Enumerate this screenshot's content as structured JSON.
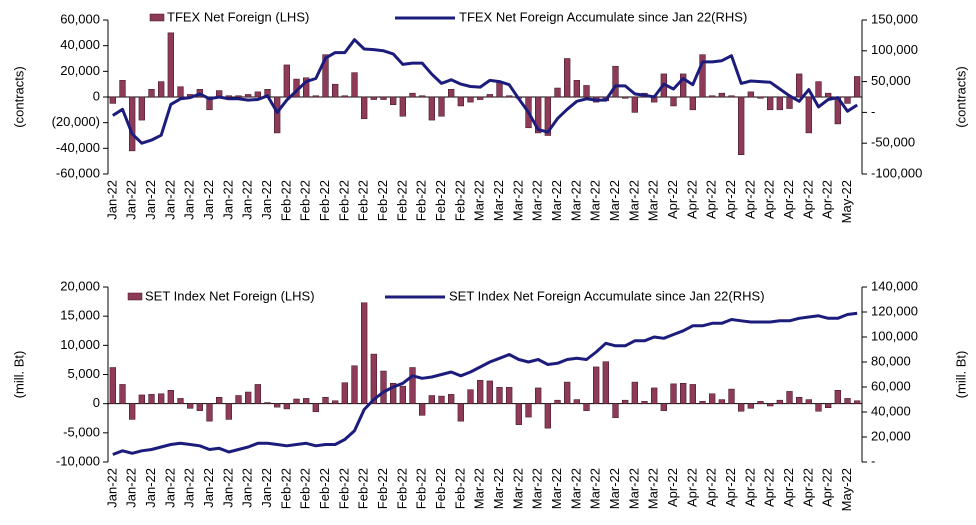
{
  "chart_data": [
    {
      "type": "bar_line",
      "categories": [
        "Jan-22",
        null,
        "Jan-22",
        null,
        "Jan-22",
        null,
        "Jan-22",
        null,
        "Jan-22",
        null,
        "Jan-22",
        null,
        "Jan-22",
        null,
        "Jan-22",
        null,
        "Jan-22",
        null,
        "Feb-22",
        null,
        "Feb-22",
        null,
        "Feb-22",
        null,
        "Feb-22",
        null,
        "Feb-22",
        null,
        "Feb-22",
        null,
        "Feb-22",
        null,
        "Feb-22",
        null,
        "Feb-22",
        null,
        "Feb-22",
        null,
        "Mar-22",
        null,
        "Mar-22",
        null,
        "Mar-22",
        null,
        "Mar-22",
        null,
        "Mar-22",
        null,
        "Mar-22",
        null,
        "Mar-22",
        null,
        "Mar-22",
        null,
        "Mar-22",
        null,
        "Mar-22",
        null,
        "Apr-22",
        null,
        "Apr-22",
        null,
        "Apr-22",
        null,
        "Apr-22",
        null,
        "Apr-22",
        null,
        "Apr-22",
        null,
        "Apr-22",
        null,
        "Apr-22",
        null,
        "Apr-22",
        null,
        "May-22",
        null
      ],
      "series": [
        {
          "name": "TFEX Net Foreign (LHS)",
          "color": "#8e3a59",
          "axis": "y",
          "values": [
            -5000,
            13000,
            -42000,
            -18000,
            6000,
            12000,
            50000,
            8000,
            2000,
            6000,
            -10000,
            5000,
            1000,
            1000,
            2000,
            4000,
            6000,
            -28000,
            25000,
            14000,
            15000,
            1000,
            33000,
            10000,
            1000,
            19000,
            -17000,
            -2000,
            -2000,
            -6000,
            -15000,
            3000,
            1000,
            -18000,
            -15000,
            6000,
            -7000,
            -4000,
            -2000,
            2000,
            12000,
            1000,
            -1000,
            -24000,
            -28000,
            -30000,
            7000,
            30000,
            13000,
            9000,
            -4000,
            -3000,
            24000,
            -1000,
            -12000,
            3000,
            -4000,
            18000,
            -7000,
            18000,
            -10000,
            33000,
            1000,
            3000,
            1000,
            -45000,
            4000,
            -1000,
            -10000,
            -10000,
            -9000,
            18000,
            -28000,
            12000,
            3000,
            -21000,
            -5000,
            16000
          ]
        },
        {
          "name": "TFEX Net Foreign Accumulate since Jan 22(RHS)",
          "color": "#1c1c7c",
          "axis": "y2",
          "values": [
            -5000,
            5000,
            -35000,
            -50000,
            -45000,
            -37000,
            13000,
            22000,
            24000,
            30000,
            22000,
            25000,
            22000,
            22000,
            20000,
            21000,
            27000,
            0,
            20000,
            35000,
            50000,
            55000,
            88000,
            97000,
            97000,
            118000,
            103000,
            102000,
            100000,
            95000,
            78000,
            80000,
            80000,
            62000,
            47000,
            53000,
            46000,
            42000,
            41000,
            52000,
            50000,
            45000,
            22000,
            0,
            -28000,
            -32000,
            -10000,
            5000,
            18000,
            22000,
            20000,
            20000,
            43000,
            43000,
            30000,
            28000,
            25000,
            46000,
            38000,
            55000,
            45000,
            82000,
            82000,
            84000,
            92000,
            47000,
            51000,
            50000,
            49000,
            38000,
            27000,
            18000,
            37000,
            9000,
            21000,
            24000,
            2000,
            12000
          ]
        }
      ],
      "ylabel": "(contracts)",
      "y2label": "(contracts)",
      "ylim": [
        -60000,
        60000
      ],
      "yticks": [
        {
          "value": -60000,
          "label": "-60,000"
        },
        {
          "value": -40000,
          "label": "-40,000"
        },
        {
          "value": -20000,
          "label": "(20,000)"
        },
        0,
        {
          "value": 20000,
          "label": "20,000"
        },
        {
          "value": 40000,
          "label": "40,000"
        },
        {
          "value": 60000,
          "label": "60,000"
        }
      ],
      "y2lim": [
        -100000,
        150000
      ],
      "y2ticks": [
        {
          "value": -100000,
          "label": "-100,000"
        },
        {
          "value": -50000,
          "label": "-50,000"
        },
        {
          "value": 0,
          "label": "-"
        },
        {
          "value": 50000,
          "label": "50,000"
        },
        {
          "value": 100000,
          "label": "100,000"
        },
        {
          "value": 150000,
          "label": "150,000"
        }
      ]
    },
    {
      "type": "bar_line",
      "categories": [
        "Jan-22",
        null,
        "Jan-22",
        null,
        "Jan-22",
        null,
        "Jan-22",
        null,
        "Jan-22",
        null,
        "Jan-22",
        null,
        "Jan-22",
        null,
        "Jan-22",
        null,
        "Jan-22",
        null,
        "Feb-22",
        null,
        "Feb-22",
        null,
        "Feb-22",
        null,
        "Feb-22",
        null,
        "Feb-22",
        null,
        "Feb-22",
        null,
        "Feb-22",
        null,
        "Feb-22",
        null,
        "Feb-22",
        null,
        "Feb-22",
        null,
        "Mar-22",
        null,
        "Mar-22",
        null,
        "Mar-22",
        null,
        "Mar-22",
        null,
        "Mar-22",
        null,
        "Mar-22",
        null,
        "Mar-22",
        null,
        "Mar-22",
        null,
        "Mar-22",
        null,
        "Mar-22",
        null,
        "Apr-22",
        null,
        "Apr-22",
        null,
        "Apr-22",
        null,
        "Apr-22",
        null,
        "Apr-22",
        null,
        "Apr-22",
        null,
        "Apr-22",
        null,
        "Apr-22",
        null,
        "Apr-22",
        null,
        "May-22",
        null
      ],
      "series": [
        {
          "name": "SET Index Net Foreign (LHS)",
          "color": "#8e3a59",
          "axis": "y",
          "values": [
            6200,
            3300,
            -2700,
            1500,
            1600,
            1700,
            2300,
            900,
            -800,
            -1200,
            -3000,
            1100,
            -2700,
            1400,
            2000,
            3300,
            200,
            -600,
            -900,
            800,
            900,
            -1400,
            1100,
            500,
            3600,
            6500,
            17300,
            8500,
            5600,
            3500,
            3000,
            6200,
            -2000,
            1400,
            1300,
            1600,
            -3000,
            2400,
            4000,
            3900,
            2800,
            2800,
            -3600,
            -2300,
            2700,
            -4200,
            600,
            3700,
            700,
            -1200,
            6300,
            7200,
            -2400,
            600,
            3700,
            400,
            2700,
            -1200,
            3400,
            3500,
            3300,
            400,
            1700,
            700,
            2500,
            -1300,
            -800,
            400,
            -400,
            600,
            2100,
            1100,
            700,
            -1300,
            -700,
            2300,
            900,
            500
          ]
        },
        {
          "name": "SET Index Net Foreign Accumulate since Jan 22(RHS)",
          "color": "#1c1c7c",
          "axis": "y2",
          "values": [
            6000,
            9000,
            7000,
            9000,
            10000,
            12000,
            14000,
            15000,
            14000,
            13000,
            10000,
            11000,
            8000,
            10000,
            12000,
            15000,
            15000,
            14000,
            13000,
            14000,
            15000,
            13000,
            14000,
            14000,
            18000,
            25000,
            42000,
            50000,
            56000,
            60000,
            63000,
            69000,
            67000,
            68000,
            70000,
            72000,
            69000,
            72000,
            76000,
            80000,
            83000,
            86000,
            82000,
            80000,
            82000,
            78000,
            79000,
            82000,
            83000,
            82000,
            88000,
            95000,
            93000,
            93000,
            97000,
            97000,
            100000,
            99000,
            102000,
            105000,
            109000,
            109000,
            111000,
            111000,
            114000,
            113000,
            112000,
            112000,
            112000,
            113000,
            113000,
            115000,
            116000,
            117000,
            115000,
            115000,
            118000,
            119000
          ]
        }
      ],
      "ylabel": "(mill. Bt)",
      "y2label": "(mill. Bt)",
      "ylim": [
        -10000,
        20000
      ],
      "yticks": [
        {
          "value": -10000,
          "label": "-10,000"
        },
        {
          "value": -5000,
          "label": "-5,000"
        },
        0,
        {
          "value": 5000,
          "label": "5,000"
        },
        {
          "value": 10000,
          "label": "10,000"
        },
        {
          "value": 15000,
          "label": "15,000"
        },
        {
          "value": 20000,
          "label": "20,000"
        }
      ],
      "y2lim": [
        0,
        140000
      ],
      "y2ticks": [
        {
          "value": 0,
          "label": "-"
        },
        {
          "value": 20000,
          "label": "20,000"
        },
        {
          "value": 40000,
          "label": "40,000"
        },
        {
          "value": 60000,
          "label": "60,000"
        },
        {
          "value": 80000,
          "label": "80,000"
        },
        {
          "value": 100000,
          "label": "100,000"
        },
        {
          "value": 120000,
          "label": "120,000"
        },
        {
          "value": 140000,
          "label": "140,000"
        }
      ]
    }
  ]
}
